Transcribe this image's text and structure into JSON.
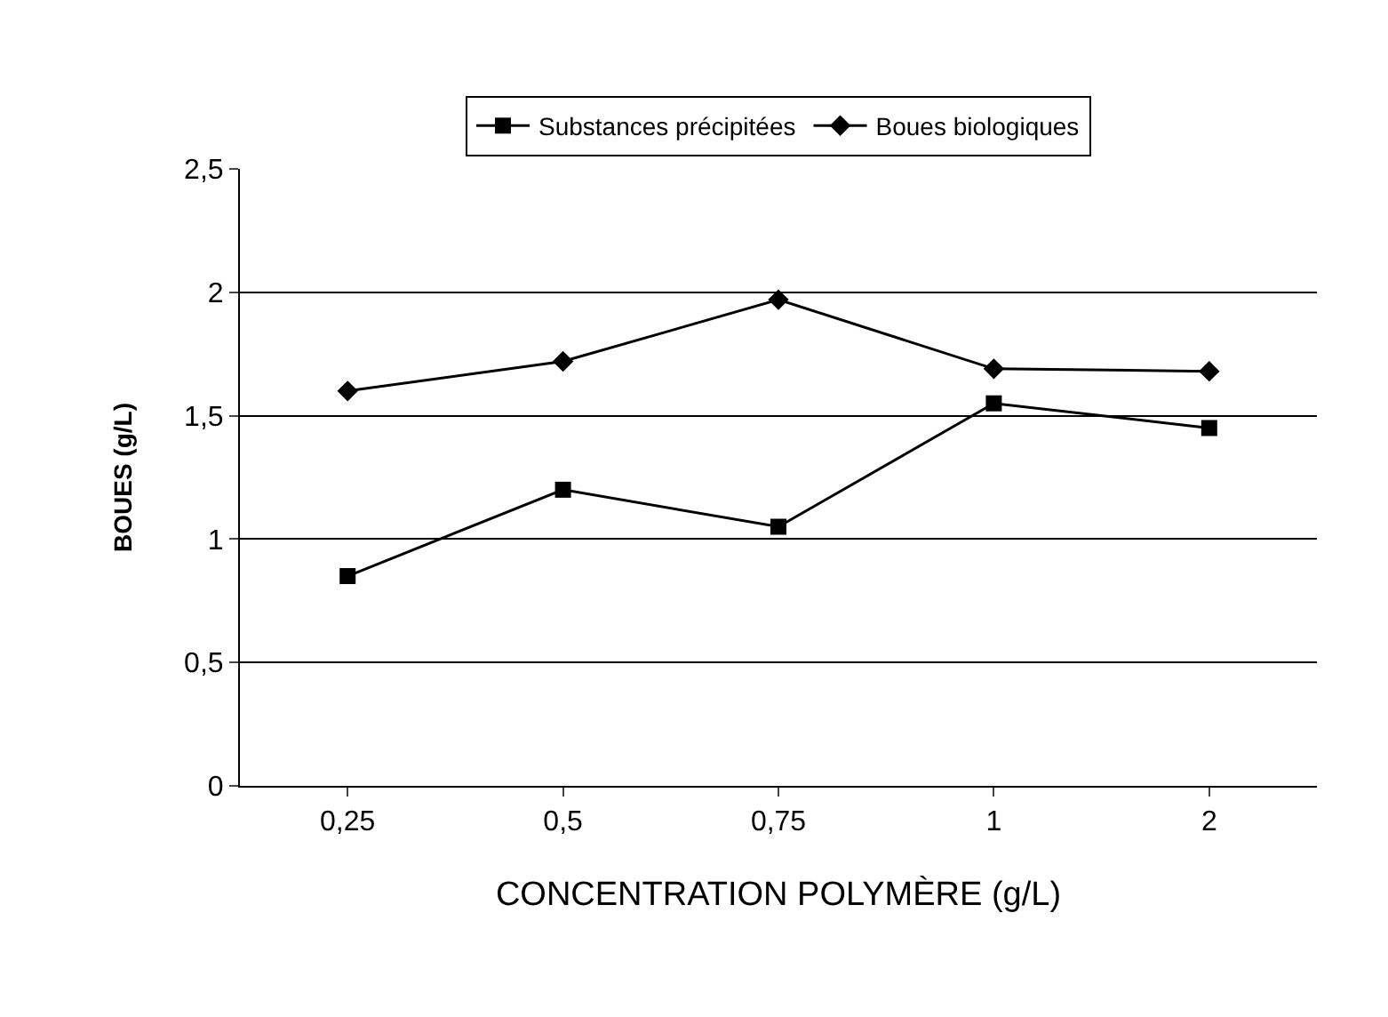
{
  "chart_data": {
    "type": "line",
    "xlabel": "CONCENTRATION POLYMÈRE (g/L)",
    "ylabel": "BOUES (g/L)",
    "categories": [
      "0,25",
      "0,5",
      "0,75",
      "1",
      "2"
    ],
    "series": [
      {
        "name": "Substances précipitées",
        "color": "#000000",
        "marker": "square",
        "values": [
          0.85,
          1.2,
          1.05,
          1.55,
          1.45
        ]
      },
      {
        "name": "Boues biologiques",
        "color": "#000000",
        "marker": "diamond",
        "values": [
          1.6,
          1.72,
          1.97,
          1.69,
          1.68
        ]
      }
    ],
    "ylim": [
      0,
      2.5
    ],
    "yticks": [
      0,
      {
        "value": 0.5,
        "label": "0,5"
      },
      1,
      {
        "value": 1.5,
        "label": "1,5"
      },
      2,
      {
        "value": 2.5,
        "label": "2,5"
      }
    ],
    "grid": "y",
    "legend": "top",
    "line_style": "solid"
  }
}
